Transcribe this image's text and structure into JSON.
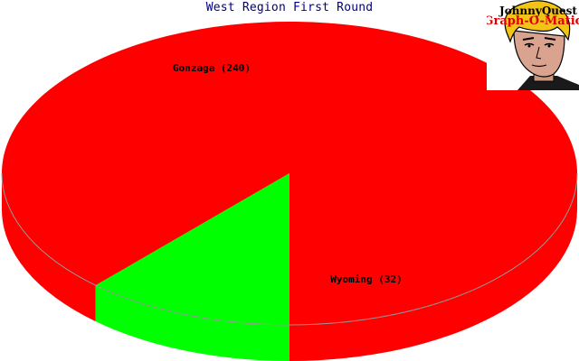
{
  "chart_data": {
    "type": "pie",
    "title": "West Region First Round",
    "slices": [
      {
        "label": "Gonzaga (240)",
        "value": 240,
        "color": "#ff0000"
      },
      {
        "label": "Wyoming (32)",
        "value": 32,
        "color": "#00ff00"
      }
    ],
    "style": "3d",
    "legend": "none"
  },
  "logo": {
    "line1": "JohnnyQuest",
    "line2": "Graph-O-Matic"
  }
}
